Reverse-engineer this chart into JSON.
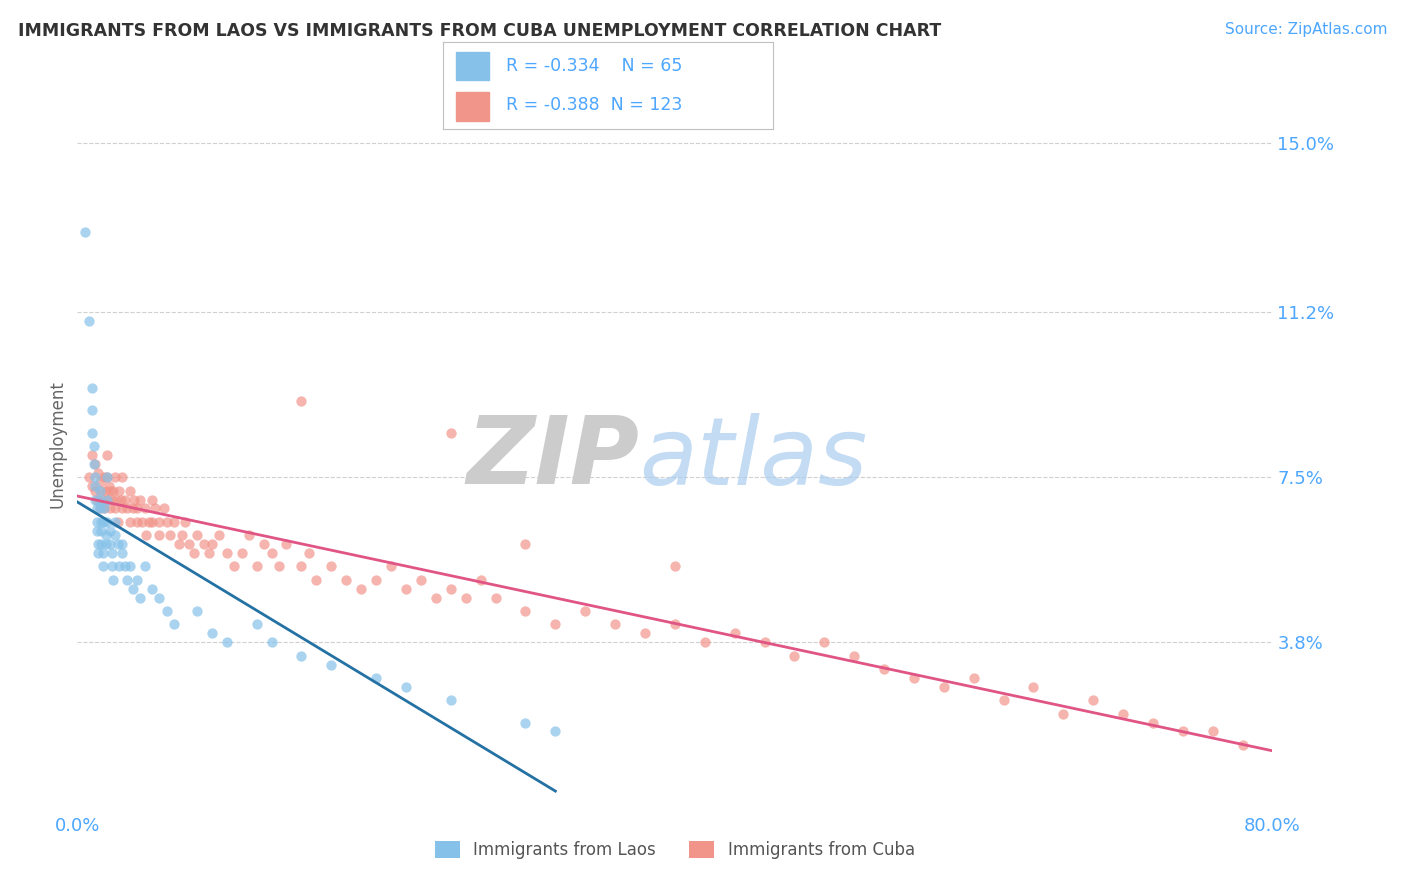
{
  "title": "IMMIGRANTS FROM LAOS VS IMMIGRANTS FROM CUBA UNEMPLOYMENT CORRELATION CHART",
  "source": "Source: ZipAtlas.com",
  "ylabel": "Unemployment",
  "xlim": [
    0.0,
    0.8
  ],
  "ylim": [
    0.0,
    0.165
  ],
  "yticks": [
    0.038,
    0.075,
    0.112,
    0.15
  ],
  "ytick_labels": [
    "3.8%",
    "7.5%",
    "11.2%",
    "15.0%"
  ],
  "xticks": [
    0.0,
    0.2,
    0.4,
    0.6,
    0.8
  ],
  "xtick_labels": [
    "0.0%",
    "",
    "",
    "",
    "80.0%"
  ],
  "background_color": "#ffffff",
  "grid_color": "#d0d0d0",
  "axis_color": "#4da6ff",
  "laos_color": "#85c1e9",
  "cuba_color": "#f1948a",
  "laos_line_color": "#2471a3",
  "cuba_line_color": "#e05585",
  "laos_R": -0.334,
  "laos_N": 65,
  "cuba_R": -0.388,
  "cuba_N": 123,
  "laos_scatter_x": [
    0.005,
    0.008,
    0.01,
    0.01,
    0.01,
    0.011,
    0.011,
    0.012,
    0.012,
    0.012,
    0.013,
    0.013,
    0.013,
    0.014,
    0.014,
    0.015,
    0.015,
    0.015,
    0.016,
    0.016,
    0.016,
    0.017,
    0.017,
    0.018,
    0.018,
    0.019,
    0.019,
    0.02,
    0.02,
    0.02,
    0.022,
    0.022,
    0.023,
    0.023,
    0.024,
    0.025,
    0.025,
    0.027,
    0.028,
    0.03,
    0.03,
    0.032,
    0.033,
    0.035,
    0.037,
    0.04,
    0.042,
    0.045,
    0.05,
    0.055,
    0.06,
    0.065,
    0.08,
    0.09,
    0.1,
    0.12,
    0.13,
    0.15,
    0.17,
    0.2,
    0.22,
    0.25,
    0.3,
    0.32
  ],
  "laos_scatter_y": [
    0.13,
    0.11,
    0.095,
    0.09,
    0.085,
    0.082,
    0.078,
    0.075,
    0.073,
    0.07,
    0.068,
    0.065,
    0.063,
    0.06,
    0.058,
    0.072,
    0.07,
    0.068,
    0.065,
    0.063,
    0.06,
    0.058,
    0.055,
    0.068,
    0.065,
    0.062,
    0.06,
    0.075,
    0.07,
    0.065,
    0.063,
    0.06,
    0.058,
    0.055,
    0.052,
    0.065,
    0.062,
    0.06,
    0.055,
    0.06,
    0.058,
    0.055,
    0.052,
    0.055,
    0.05,
    0.052,
    0.048,
    0.055,
    0.05,
    0.048,
    0.045,
    0.042,
    0.045,
    0.04,
    0.038,
    0.042,
    0.038,
    0.035,
    0.033,
    0.03,
    0.028,
    0.025,
    0.02,
    0.018
  ],
  "cuba_scatter_x": [
    0.008,
    0.01,
    0.01,
    0.012,
    0.012,
    0.013,
    0.014,
    0.015,
    0.015,
    0.016,
    0.017,
    0.018,
    0.018,
    0.019,
    0.02,
    0.02,
    0.02,
    0.021,
    0.022,
    0.022,
    0.023,
    0.024,
    0.025,
    0.025,
    0.026,
    0.027,
    0.028,
    0.029,
    0.03,
    0.03,
    0.032,
    0.033,
    0.035,
    0.035,
    0.037,
    0.038,
    0.04,
    0.04,
    0.042,
    0.043,
    0.045,
    0.046,
    0.048,
    0.05,
    0.05,
    0.052,
    0.055,
    0.055,
    0.058,
    0.06,
    0.062,
    0.065,
    0.068,
    0.07,
    0.072,
    0.075,
    0.078,
    0.08,
    0.085,
    0.088,
    0.09,
    0.095,
    0.1,
    0.105,
    0.11,
    0.115,
    0.12,
    0.125,
    0.13,
    0.135,
    0.14,
    0.15,
    0.155,
    0.16,
    0.17,
    0.18,
    0.19,
    0.2,
    0.21,
    0.22,
    0.23,
    0.24,
    0.25,
    0.26,
    0.27,
    0.28,
    0.3,
    0.32,
    0.34,
    0.36,
    0.38,
    0.4,
    0.42,
    0.44,
    0.46,
    0.48,
    0.5,
    0.52,
    0.54,
    0.56,
    0.58,
    0.6,
    0.62,
    0.64,
    0.66,
    0.68,
    0.7,
    0.72,
    0.74,
    0.76,
    0.78,
    0.3,
    0.25,
    0.15,
    0.4
  ],
  "cuba_scatter_y": [
    0.075,
    0.08,
    0.073,
    0.078,
    0.072,
    0.07,
    0.076,
    0.074,
    0.068,
    0.072,
    0.07,
    0.075,
    0.068,
    0.072,
    0.08,
    0.075,
    0.07,
    0.073,
    0.072,
    0.068,
    0.07,
    0.072,
    0.075,
    0.068,
    0.07,
    0.065,
    0.072,
    0.07,
    0.075,
    0.068,
    0.07,
    0.068,
    0.072,
    0.065,
    0.068,
    0.07,
    0.065,
    0.068,
    0.07,
    0.065,
    0.068,
    0.062,
    0.065,
    0.07,
    0.065,
    0.068,
    0.062,
    0.065,
    0.068,
    0.065,
    0.062,
    0.065,
    0.06,
    0.062,
    0.065,
    0.06,
    0.058,
    0.062,
    0.06,
    0.058,
    0.06,
    0.062,
    0.058,
    0.055,
    0.058,
    0.062,
    0.055,
    0.06,
    0.058,
    0.055,
    0.06,
    0.055,
    0.058,
    0.052,
    0.055,
    0.052,
    0.05,
    0.052,
    0.055,
    0.05,
    0.052,
    0.048,
    0.05,
    0.048,
    0.052,
    0.048,
    0.045,
    0.042,
    0.045,
    0.042,
    0.04,
    0.042,
    0.038,
    0.04,
    0.038,
    0.035,
    0.038,
    0.035,
    0.032,
    0.03,
    0.028,
    0.03,
    0.025,
    0.028,
    0.022,
    0.025,
    0.022,
    0.02,
    0.018,
    0.018,
    0.015,
    0.06,
    0.085,
    0.092,
    0.055
  ]
}
